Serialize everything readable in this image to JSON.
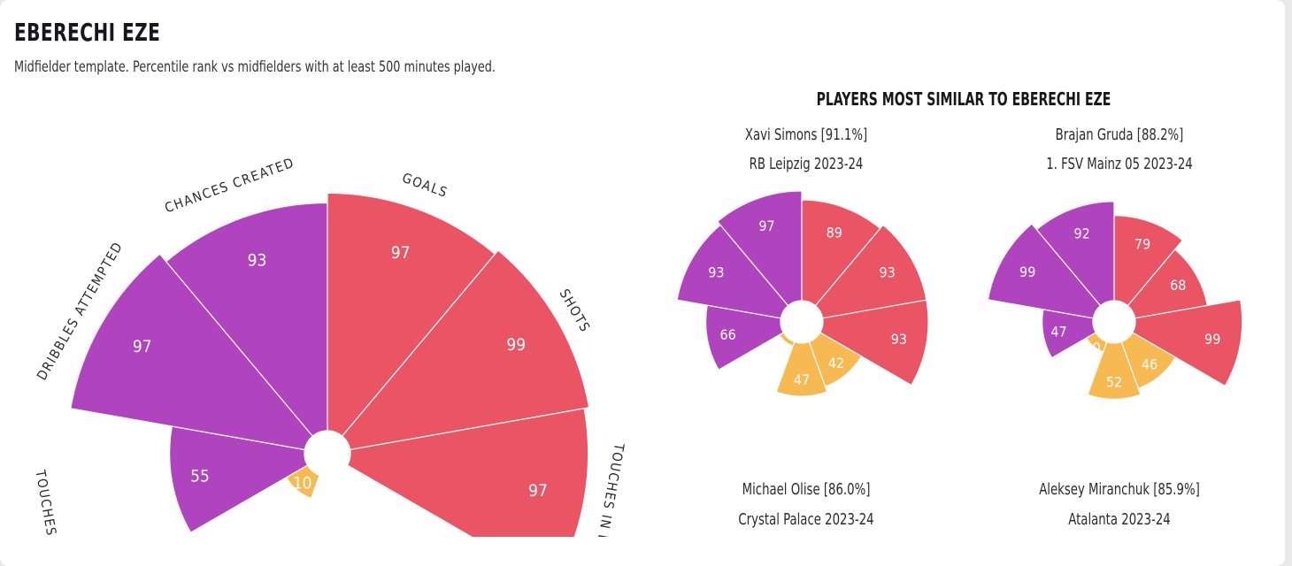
{
  "header": {
    "title": "EBERECHI EZE",
    "subtitle": "Midfielder template. Percentile rank vs midfielders with at least 500 minutes played."
  },
  "similar": {
    "title": "PLAYERS MOST SIMILAR TO EBERECHI EZE",
    "players": [
      {
        "name": "Xavi Simons [91.1%]",
        "team": "RB Leipzig 2023-24"
      },
      {
        "name": "Brajan Gruda [88.2%]",
        "team": "1. FSV Mainz 05 2023-24"
      },
      {
        "name": "Michael Olise [86.0%]",
        "team": "Crystal Palace 2023-24"
      },
      {
        "name": "Aleksey Miranchuk [85.9%]",
        "team": "Atalanta 2023-24"
      }
    ]
  },
  "colors": {
    "attacking": "#ea5565",
    "possession": "#b044bf",
    "defending": "#f7b952",
    "hole": "#ffffff"
  },
  "chart_data": [
    {
      "type": "polar-bar",
      "player": "Eberechi Eze",
      "categories": [
        "Goals",
        "Shots",
        "Touches in box",
        "Touches",
        "Dribbles attempted",
        "Chances created"
      ],
      "category_labels": [
        "GOALS",
        "SHOTS",
        "TOUCHES IN BOX",
        "TOUCHES",
        "DRIBBLES ATTEMPTED",
        "CHANCES CREATED"
      ],
      "groups": [
        "attacking",
        "attacking",
        "attacking",
        "possession",
        "possession",
        "possession"
      ],
      "values": [
        97,
        99,
        97,
        55,
        97,
        93
      ],
      "defending_values": [
        10
      ],
      "rlim": [
        0,
        100
      ]
    },
    {
      "type": "polar-bar",
      "player": "Xavi Simons",
      "values": [
        89,
        93,
        93,
        66,
        93,
        97
      ],
      "defending_values": [
        42,
        47,
        4
      ],
      "rlim": [
        0,
        100
      ]
    },
    {
      "type": "polar-bar",
      "player": "Brajan Gruda",
      "values": [
        79,
        68,
        99,
        47,
        99,
        92
      ],
      "defending_values": [
        46,
        52,
        10
      ],
      "rlim": [
        0,
        100
      ]
    }
  ]
}
